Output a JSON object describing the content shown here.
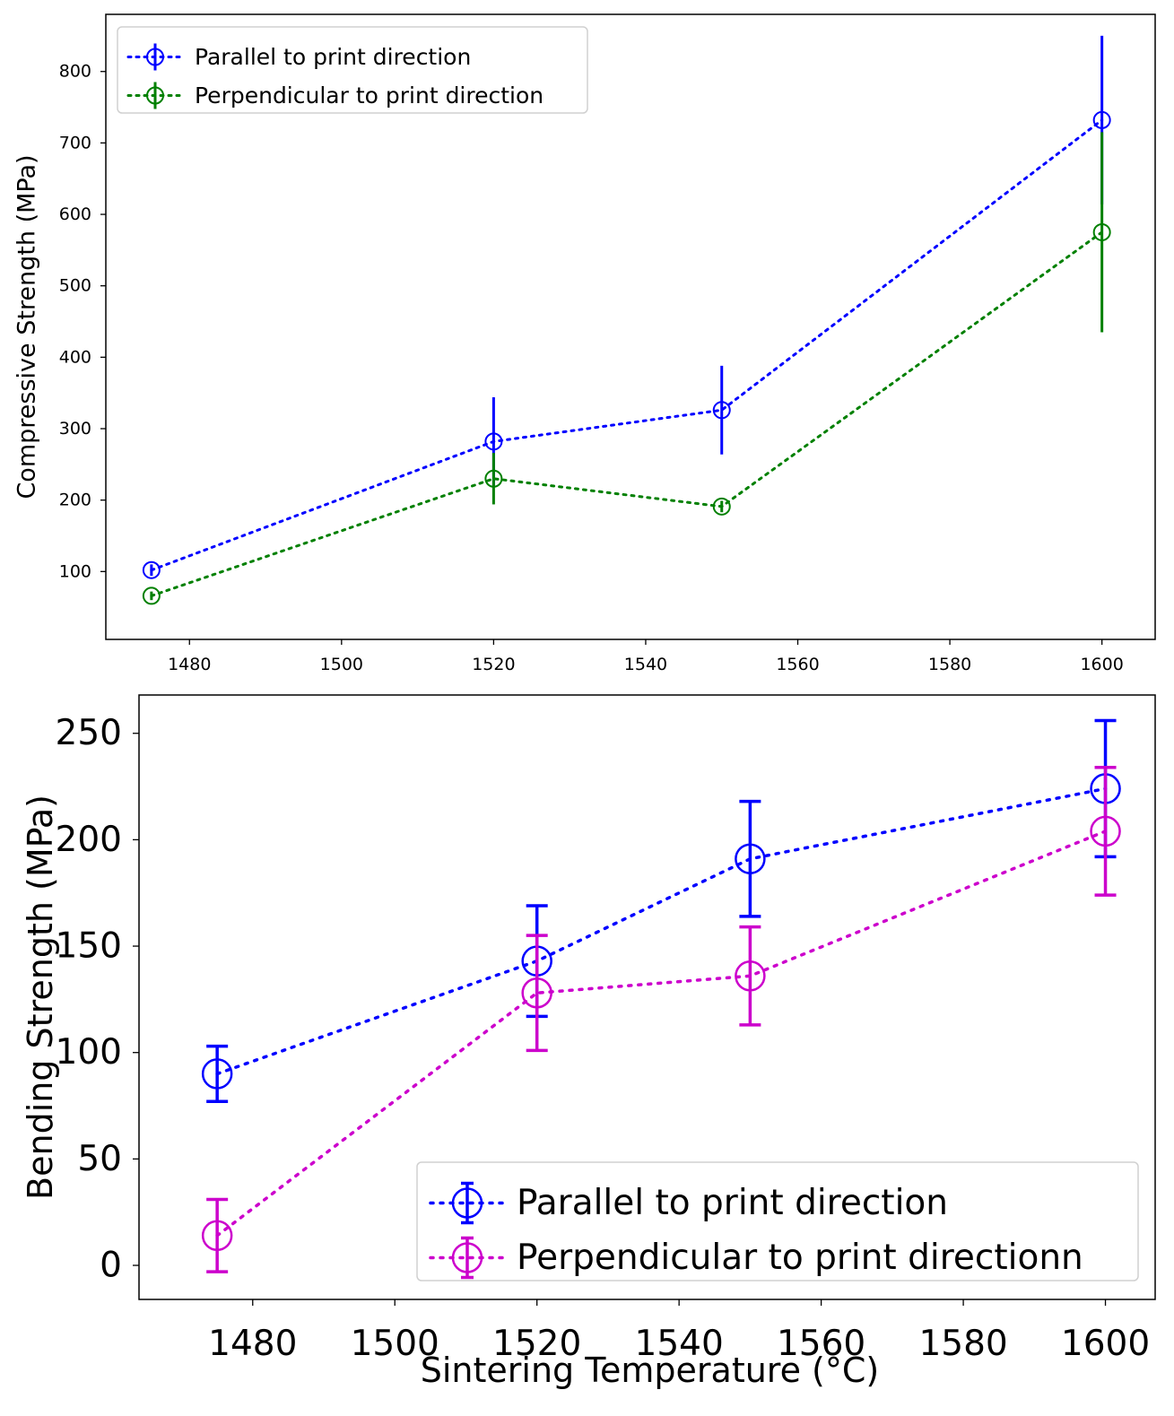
{
  "chart_data": [
    {
      "type": "line",
      "title": "",
      "xlabel": "",
      "ylabel": "Compressive Strength (MPa)",
      "xlim": [
        1469,
        1607
      ],
      "ylim": [
        5,
        880
      ],
      "xticks": [
        1480,
        1500,
        1520,
        1540,
        1560,
        1580,
        1600
      ],
      "yticks": [
        100,
        200,
        300,
        400,
        500,
        600,
        700,
        800
      ],
      "x": [
        1475,
        1520,
        1550,
        1600
      ],
      "grid": false,
      "legend_position": "top-left",
      "series": [
        {
          "name": "Parallel to print direction",
          "color": "#0000ff",
          "values": [
            102,
            282,
            326,
            732
          ],
          "errors": [
            8,
            62,
            62,
            118
          ]
        },
        {
          "name": "Perpendicular to print direction",
          "color": "#008000",
          "values": [
            66,
            230,
            191,
            575
          ],
          "errors": [
            6,
            36,
            8,
            140
          ]
        }
      ]
    },
    {
      "type": "line",
      "title": "",
      "xlabel": "Sintering Temperature (°C)",
      "ylabel": "Bending Strength (MPa)",
      "xlim": [
        1464,
        1607
      ],
      "ylim": [
        -16,
        268
      ],
      "xticks": [
        1480,
        1500,
        1520,
        1540,
        1560,
        1580,
        1600
      ],
      "yticks": [
        0,
        50,
        100,
        150,
        200,
        250
      ],
      "x": [
        1475,
        1520,
        1550,
        1600
      ],
      "grid": false,
      "legend_position": "lower-right",
      "series": [
        {
          "name": "Parallel to print direction",
          "color": "#0000ff",
          "values": [
            90,
            143,
            191,
            224
          ],
          "errors": [
            13,
            26,
            27,
            32
          ]
        },
        {
          "name": "Perpendicular to print directionn",
          "color": "#cc00cc",
          "values": [
            14,
            128,
            136,
            204
          ],
          "errors": [
            17,
            27,
            23,
            30
          ]
        }
      ]
    }
  ]
}
